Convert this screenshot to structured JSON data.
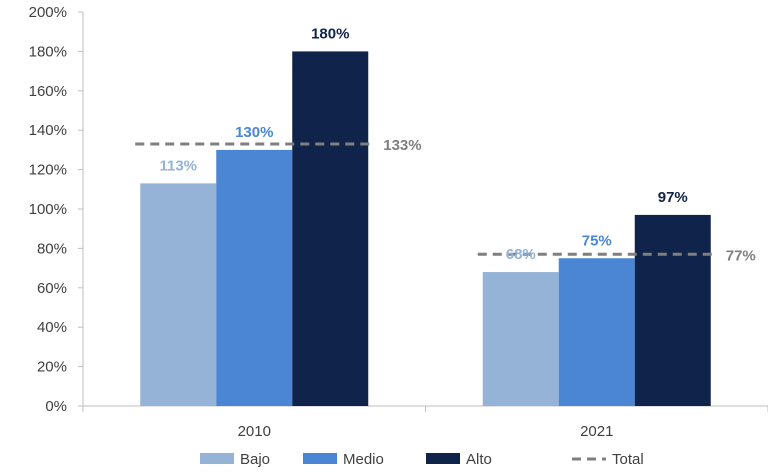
{
  "chart_data": {
    "type": "bar",
    "categories": [
      "2010",
      "2021"
    ],
    "series": [
      {
        "name": "Bajo",
        "values": [
          113,
          68
        ],
        "labels": [
          "113%",
          "68%"
        ],
        "color": "#95B3D7",
        "label_color": "#95B3D7"
      },
      {
        "name": "Medio",
        "values": [
          130,
          75
        ],
        "labels": [
          "130%",
          "75%"
        ],
        "color": "#4A86D4",
        "label_color": "#4A86D4"
      },
      {
        "name": "Alto",
        "values": [
          180,
          97
        ],
        "labels": [
          "180%",
          "97%"
        ],
        "color": "#10234A",
        "label_color": "#10234A"
      }
    ],
    "reference_lines": [
      {
        "name": "Total",
        "values": [
          133,
          77
        ],
        "labels": [
          "133%",
          "77%"
        ],
        "color": "#7F7F7F",
        "style": "dashed"
      }
    ],
    "y_ticks": [
      "0%",
      "20%",
      "40%",
      "60%",
      "80%",
      "100%",
      "120%",
      "140%",
      "160%",
      "180%",
      "200%"
    ],
    "ylim": [
      0,
      200
    ],
    "title": "",
    "xlabel": "",
    "ylabel": "",
    "grid": false,
    "legend": {
      "position": "bottom",
      "items": [
        {
          "label": "Bajo",
          "kind": "bar"
        },
        {
          "label": "Medio",
          "kind": "bar"
        },
        {
          "label": "Alto",
          "kind": "bar"
        },
        {
          "label": "Total",
          "kind": "dashed-line"
        }
      ]
    }
  }
}
